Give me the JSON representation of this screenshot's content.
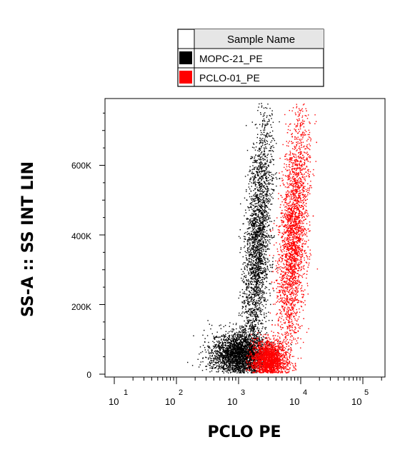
{
  "chart_data": {
    "type": "scatter",
    "xlabel": "PCLO PE",
    "ylabel": "SS-A :: SS INT LIN",
    "x_scale": "log",
    "x_range": [
      10,
      1000000
    ],
    "y_range": [
      0,
      780000
    ],
    "x_ticks": [
      {
        "base": "10",
        "exp": "1"
      },
      {
        "base": "10",
        "exp": "2"
      },
      {
        "base": "10",
        "exp": "3"
      },
      {
        "base": "10",
        "exp": "4"
      },
      {
        "base": "10",
        "exp": "5"
      }
    ],
    "y_ticks": [
      {
        "value": 0,
        "label": "0"
      },
      {
        "value": 200000,
        "label": "200K"
      },
      {
        "value": 400000,
        "label": "400K"
      },
      {
        "value": 600000,
        "label": "600K"
      }
    ],
    "legend": {
      "header": "Sample Name",
      "placement": "top-center",
      "entries": [
        {
          "label": "MOPC-21_PE",
          "color": "#000000"
        },
        {
          "label": "PCLO-01_PE",
          "color": "#ff0000"
        }
      ]
    },
    "series": [
      {
        "name": "MOPC-21_PE",
        "color": "#000000",
        "clusters": [
          {
            "x_center": 1000,
            "y_center": 60000,
            "x_spread_log": 0.22,
            "y_spread": 30000,
            "count": 2600
          },
          {
            "x_center": 2000,
            "y_center": 380000,
            "x_spread_log": 0.1,
            "y_spread": 180000,
            "count": 2600
          }
        ]
      },
      {
        "name": "PCLO-01_PE",
        "color": "#ff0000",
        "clusters": [
          {
            "x_center": 3000,
            "y_center": 45000,
            "x_spread_log": 0.13,
            "y_spread": 25000,
            "count": 1800
          },
          {
            "x_center": 7500,
            "y_center": 400000,
            "x_spread_log": 0.11,
            "y_spread": 170000,
            "count": 3000
          }
        ]
      }
    ]
  }
}
